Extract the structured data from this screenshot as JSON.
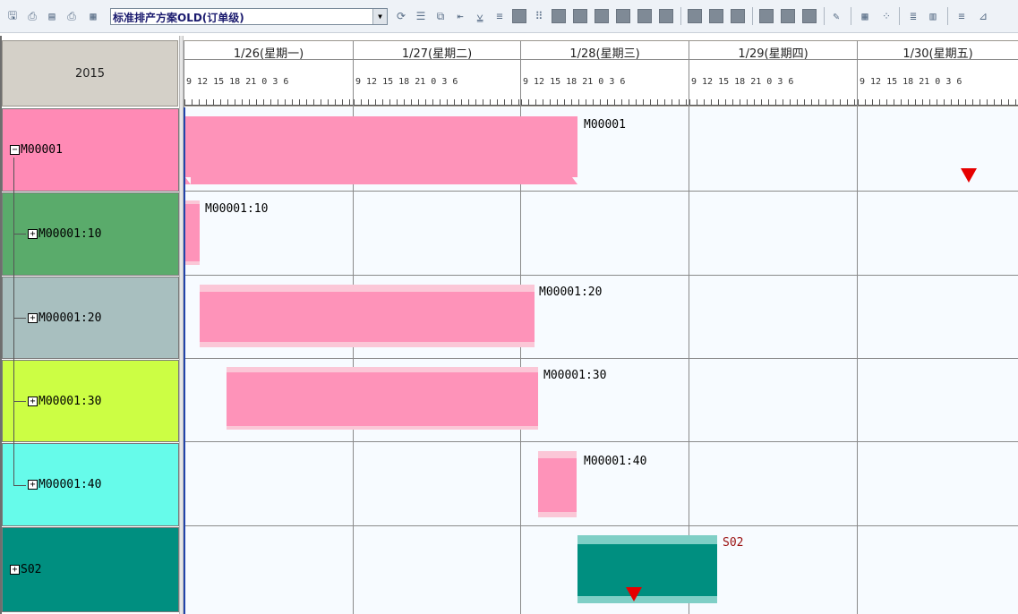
{
  "toolbar": {
    "scheme_value": "标准排产方案OLD(订单级)",
    "icons": [
      "save-icon",
      "print-icon",
      "preview-icon",
      "printer-icon",
      "refresh-icon",
      "align-icon",
      "copy-icon",
      "indent-icon",
      "filter-icon",
      "list-icon",
      "block-icon",
      "dots-icon",
      "block-icon",
      "block-icon",
      "block-icon",
      "block-icon",
      "block-icon",
      "block-icon",
      "block-icon",
      "block-icon",
      "edit-icon",
      "grid-icon",
      "group-icon",
      "text-icon",
      "chart-icon",
      "lines-icon",
      "chart2-icon"
    ]
  },
  "header": {
    "year": "2015",
    "days": [
      {
        "label": "1/26(星期一)"
      },
      {
        "label": "1/27(星期二)"
      },
      {
        "label": "1/28(星期三)"
      },
      {
        "label": "1/29(星期四)"
      },
      {
        "label": "1/30(星期五)"
      }
    ],
    "hours": "9  12 15 18 21  0  3  6"
  },
  "rows": [
    {
      "expander": "−",
      "label": "M00001",
      "color": "#ff8ab5"
    },
    {
      "expander": "+",
      "label": "M00001:10",
      "color": "#5aab6b"
    },
    {
      "expander": "+",
      "label": "M00001:20",
      "color": "#a8bfbf"
    },
    {
      "expander": "+",
      "label": "M00001:30",
      "color": "#ccfe44"
    },
    {
      "expander": "+",
      "label": "M00001:40",
      "color": "#66fbea"
    },
    {
      "expander": "+",
      "label": "S02",
      "color": "#008f80"
    }
  ],
  "bars": [
    {
      "label": "M00001"
    },
    {
      "label": "M00001:10"
    },
    {
      "label": "M00001:20"
    },
    {
      "label": "M00001:30"
    },
    {
      "label": "M00001:40"
    },
    {
      "label": "S02"
    }
  ],
  "colors": {
    "bar_pink": "#fe93b9",
    "bar_teal": "#008f80",
    "marker_red": "#e60000"
  }
}
